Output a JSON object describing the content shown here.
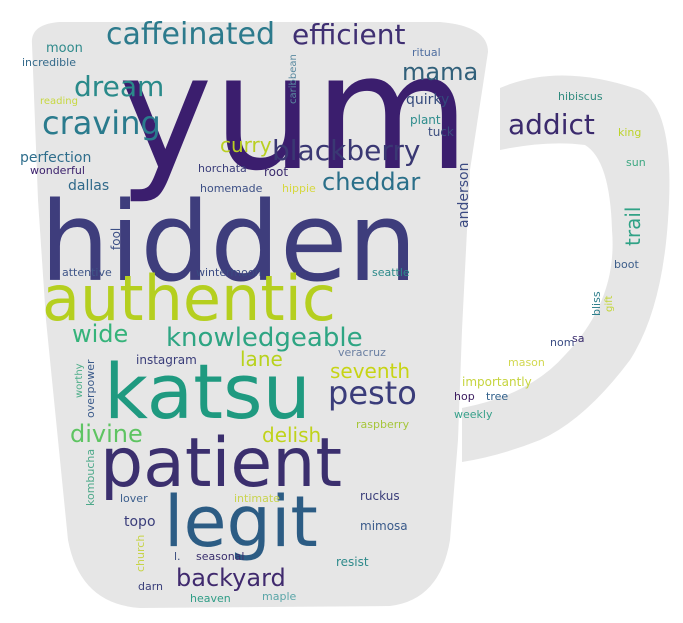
{
  "mug_color": "#e6e6e6",
  "words": [
    {
      "text": "yum",
      "color": "#3b1e6e"
    },
    {
      "text": "hidden",
      "color": "#3e3d7c"
    },
    {
      "text": "authentic",
      "color": "#b5cf1f"
    },
    {
      "text": "katsu",
      "color": "#1f9a80"
    },
    {
      "text": "patient",
      "color": "#3b2f6e"
    },
    {
      "text": "legit",
      "color": "#2c5c84"
    },
    {
      "text": "caffeinated",
      "color": "#2c7a8c"
    },
    {
      "text": "efficient",
      "color": "#3f2f72"
    },
    {
      "text": "mama",
      "color": "#31607a"
    },
    {
      "text": "dream",
      "color": "#2a8a8a"
    },
    {
      "text": "craving",
      "color": "#2a7b8d"
    },
    {
      "text": "addict",
      "color": "#3b2a6d"
    },
    {
      "text": "blackberry",
      "color": "#3a3873"
    },
    {
      "text": "curry",
      "color": "#b9cf21"
    },
    {
      "text": "cheddar",
      "color": "#2a6f89"
    },
    {
      "text": "knowledgeable",
      "color": "#2ea583"
    },
    {
      "text": "wide",
      "color": "#35b37a"
    },
    {
      "text": "pesto",
      "color": "#3a3c7a"
    },
    {
      "text": "lane",
      "color": "#b8d21d"
    },
    {
      "text": "seventh",
      "color": "#c7d415"
    },
    {
      "text": "divine",
      "color": "#5ec462"
    },
    {
      "text": "delish",
      "color": "#c0d31a"
    },
    {
      "text": "backyard",
      "color": "#402a6e"
    },
    {
      "text": "trail",
      "color": "#30a286"
    },
    {
      "text": "anderson",
      "color": "#3b4a82"
    },
    {
      "text": "moon",
      "color": "#2f8a8b"
    },
    {
      "text": "incredible",
      "color": "#33698a"
    },
    {
      "text": "reading",
      "color": "#c7d840"
    },
    {
      "text": "caribbean",
      "color": "#5a8aa0"
    },
    {
      "text": "ritual",
      "color": "#4f6ea0"
    },
    {
      "text": "quirky",
      "color": "#33497c"
    },
    {
      "text": "plant",
      "color": "#2d8c8c"
    },
    {
      "text": "tuck",
      "color": "#3a4c7e"
    },
    {
      "text": "perfection",
      "color": "#2f6e8c"
    },
    {
      "text": "wonderful",
      "color": "#3a1f6b"
    },
    {
      "text": "horchata",
      "color": "#3a3d7a"
    },
    {
      "text": "root",
      "color": "#3a2a6d"
    },
    {
      "text": "homemade",
      "color": "#3c4f85"
    },
    {
      "text": "hippie",
      "color": "#d6d83f"
    },
    {
      "text": "dallas",
      "color": "#30698a"
    },
    {
      "text": "fool",
      "color": "#3c4f85"
    },
    {
      "text": "attentive",
      "color": "#3f5588"
    },
    {
      "text": "wintermoon",
      "color": "#3a4a82"
    },
    {
      "text": "seattle",
      "color": "#2c8a8a"
    },
    {
      "text": "hibiscus",
      "color": "#2f8a7d"
    },
    {
      "text": "king",
      "color": "#bdd32a"
    },
    {
      "text": "sun",
      "color": "#3ea882"
    },
    {
      "text": "boot",
      "color": "#3d5e8a"
    },
    {
      "text": "gift",
      "color": "#c3d53a"
    },
    {
      "text": "bliss",
      "color": "#2f7f8c"
    },
    {
      "text": "nom",
      "color": "#3b4d84"
    },
    {
      "text": "sa",
      "color": "#3a2c6d"
    },
    {
      "text": "mason",
      "color": "#d2d850"
    },
    {
      "text": "importantly",
      "color": "#c6d43e"
    },
    {
      "text": "hop",
      "color": "#3a1a5e"
    },
    {
      "text": "tree",
      "color": "#2f5f8a"
    },
    {
      "text": "weekly",
      "color": "#36a08a"
    },
    {
      "text": "instagram",
      "color": "#3a3d7a"
    },
    {
      "text": "veracruz",
      "color": "#6a7fa2"
    },
    {
      "text": "worthy",
      "color": "#4fae8a"
    },
    {
      "text": "overpower",
      "color": "#3a5a8a"
    },
    {
      "text": "raspberry",
      "color": "#a6c63a"
    },
    {
      "text": "kombucha",
      "color": "#4da98a"
    },
    {
      "text": "lover",
      "color": "#3c5f8d"
    },
    {
      "text": "intimate",
      "color": "#c9d450"
    },
    {
      "text": "ruckus",
      "color": "#3a3e7a"
    },
    {
      "text": "topo",
      "color": "#3a3d7a"
    },
    {
      "text": "mimosa",
      "color": "#3a5a8a"
    },
    {
      "text": "church",
      "color": "#c7d448"
    },
    {
      "text": "l.",
      "color": "#3a4c7e"
    },
    {
      "text": "seasonal",
      "color": "#3a2f6d"
    },
    {
      "text": "resist",
      "color": "#2f8a8b"
    },
    {
      "text": "darn",
      "color": "#3a3f7b"
    },
    {
      "text": "heaven",
      "color": "#2f9d86"
    },
    {
      "text": "maple",
      "color": "#5aa6a8"
    }
  ]
}
